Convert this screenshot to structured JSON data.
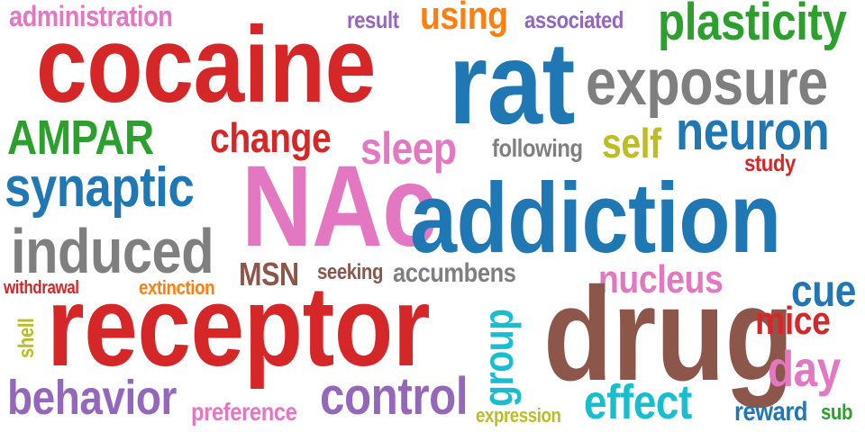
{
  "words": [
    {
      "text": "administration",
      "color": "#e377c2"
    },
    {
      "text": "result",
      "color": "#9467bd"
    },
    {
      "text": "using",
      "color": "#ff7f0e"
    },
    {
      "text": "associated",
      "color": "#9467bd"
    },
    {
      "text": "plasticity",
      "color": "#2ca02c"
    },
    {
      "text": "cocaine",
      "color": "#d62728"
    },
    {
      "text": "rat",
      "color": "#1f77b4"
    },
    {
      "text": "exposure",
      "color": "#7f7f7f"
    },
    {
      "text": "neuron",
      "color": "#1f77b4"
    },
    {
      "text": "AMPAR",
      "color": "#2ca02c"
    },
    {
      "text": "change",
      "color": "#d62728"
    },
    {
      "text": "sleep",
      "color": "#e377c2"
    },
    {
      "text": "following",
      "color": "#7f7f7f"
    },
    {
      "text": "self",
      "color": "#bcbd22"
    },
    {
      "text": "study",
      "color": "#d62728"
    },
    {
      "text": "synaptic",
      "color": "#1f77b4"
    },
    {
      "text": "NAc",
      "color": "#e377c2"
    },
    {
      "text": "addiction",
      "color": "#1f77b4"
    },
    {
      "text": "induced",
      "color": "#7f7f7f"
    },
    {
      "text": "MSN",
      "color": "#8c564b"
    },
    {
      "text": "seeking",
      "color": "#8c564b"
    },
    {
      "text": "accumbens",
      "color": "#7f7f7f"
    },
    {
      "text": "nucleus",
      "color": "#e377c2"
    },
    {
      "text": "cue",
      "color": "#1f77b4"
    },
    {
      "text": "withdrawal",
      "color": "#d62728"
    },
    {
      "text": "extinction",
      "color": "#ff7f0e"
    },
    {
      "text": "shell",
      "color": "#bcbd22"
    },
    {
      "text": "receptor",
      "color": "#d62728"
    },
    {
      "text": "group",
      "color": "#17becf"
    },
    {
      "text": "drug",
      "color": "#8c564b"
    },
    {
      "text": "mice",
      "color": "#d62728"
    },
    {
      "text": "day",
      "color": "#e377c2"
    },
    {
      "text": "behavior",
      "color": "#9467bd"
    },
    {
      "text": "preference",
      "color": "#e377c2"
    },
    {
      "text": "control",
      "color": "#9467bd"
    },
    {
      "text": "effect",
      "color": "#17becf"
    },
    {
      "text": "expression",
      "color": "#bcbd22"
    },
    {
      "text": "reward",
      "color": "#1f77b4"
    },
    {
      "text": "sub",
      "color": "#2ca02c"
    }
  ]
}
